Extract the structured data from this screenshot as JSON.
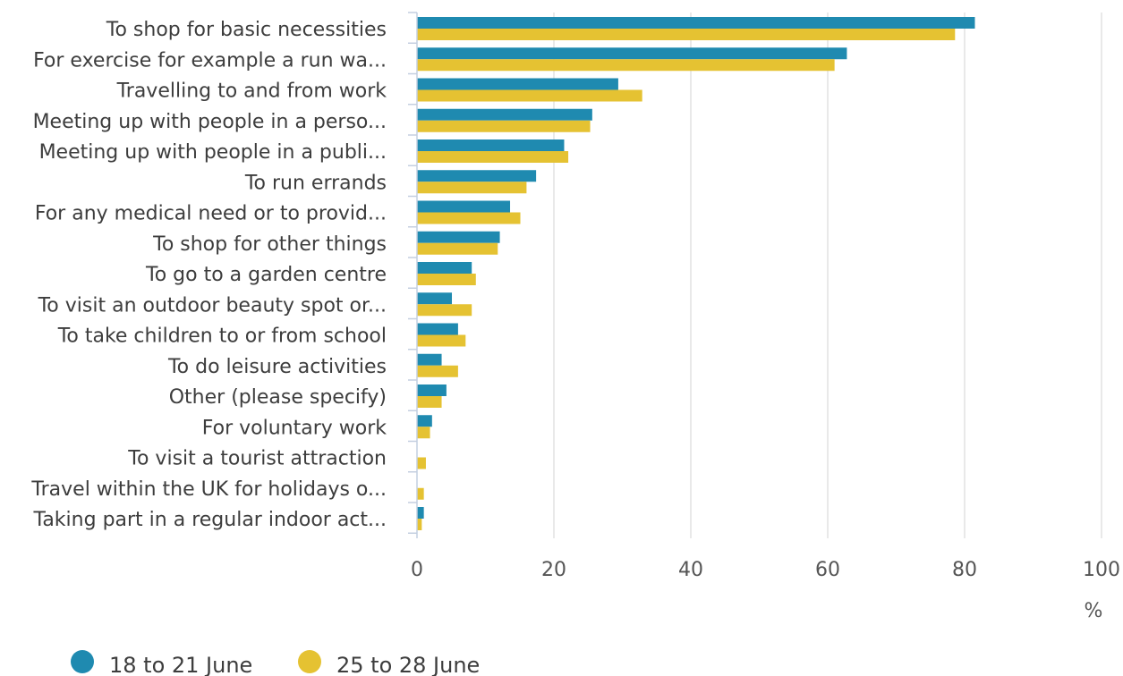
{
  "chart_data": {
    "type": "bar",
    "orientation": "horizontal",
    "categories": [
      "To shop for basic necessities",
      "For exercise for example a run wa...",
      "Travelling to and from work",
      "Meeting up with people in a perso...",
      "Meeting up with people in a publi...",
      "To run errands",
      "For any medical need or to provid...",
      "To shop for other things",
      "To go to a garden centre",
      "To visit an outdoor beauty spot or...",
      "To take children to or from school",
      "To do leisure activities",
      "Other (please specify)",
      "For voluntary work",
      "To visit a tourist attraction",
      "Travel within the UK for holidays o...",
      "Taking part in a regular indoor act..."
    ],
    "series": [
      {
        "name": "18 to 21 June",
        "color": "#1f8ab0",
        "values": [
          81.5,
          62.8,
          29.4,
          25.6,
          21.5,
          17.4,
          13.6,
          12.1,
          8.0,
          5.1,
          6.0,
          3.6,
          4.3,
          2.2,
          0,
          0,
          1.0
        ]
      },
      {
        "name": "25 to 28 June",
        "color": "#e5c232",
        "values": [
          78.6,
          61.0,
          32.9,
          25.3,
          22.1,
          16.0,
          15.1,
          11.8,
          8.6,
          8.0,
          7.1,
          6.0,
          3.6,
          1.9,
          1.3,
          1.0,
          0.7
        ]
      }
    ],
    "xticks": [
      0,
      20,
      40,
      60,
      80,
      100
    ],
    "xlim": [
      0,
      100
    ],
    "unit": "%",
    "grid": true,
    "legend_position": "bottom-left"
  }
}
